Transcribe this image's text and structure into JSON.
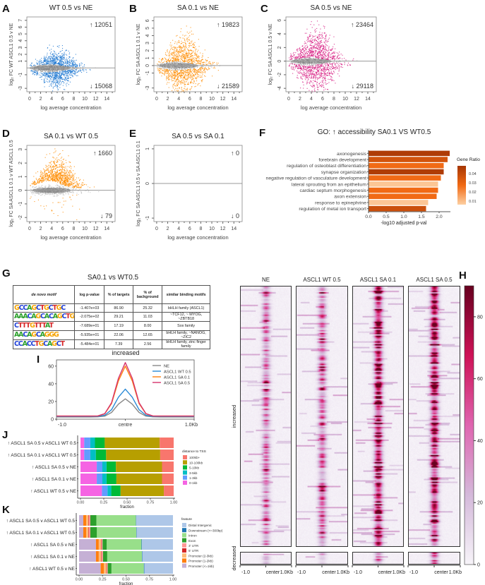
{
  "panel_letters": {
    "A": "A",
    "B": "B",
    "C": "C",
    "D": "D",
    "E": "E",
    "F": "F",
    "G": "G",
    "H": "H",
    "I": "I",
    "J": "J",
    "K": "K"
  },
  "chart_data": [
    {
      "id": "A",
      "type": "scatter",
      "title": "WT 0.5 vs NE",
      "xlabel": "log average concentration",
      "ylabel": "log₂ FC  WT ASCL1 0.5 v NE",
      "xlim": [
        -0.5,
        15.5
      ],
      "ylim": [
        -3.5,
        7.5
      ],
      "xticks": [
        0,
        2,
        4,
        6,
        8,
        10,
        12,
        14
      ],
      "yticks": [
        -3,
        -1,
        1,
        2,
        3,
        4,
        5,
        6,
        7
      ],
      "up_label": "↑ 12051",
      "down_label": "↓ 15068",
      "up": 12051,
      "down": 15068,
      "color": "#1f78d1",
      "amp": 1.0
    },
    {
      "id": "B",
      "type": "scatter",
      "title": "SA 0.1 vs NE",
      "xlabel": "log average concentration",
      "ylabel": "log₂ FC  SA ASCL1 0.1 v NE",
      "xlim": [
        -0.5,
        15.5
      ],
      "ylim": [
        -3.5,
        6.5
      ],
      "xticks": [
        0,
        2,
        4,
        6,
        8,
        10,
        12,
        14
      ],
      "yticks": [
        -3,
        -1,
        0,
        1,
        2,
        3,
        4,
        5,
        6
      ],
      "up_label": "↑ 19823",
      "down_label": "↓ 21589",
      "up": 19823,
      "down": 21589,
      "color": "#ff8c00",
      "amp": 1.5
    },
    {
      "id": "C",
      "type": "scatter",
      "title": "SA 0.5 vs NE",
      "xlabel": "log average concentration",
      "ylabel": "log₂ FC  SA ASCL1 0.5 v NE",
      "xlim": [
        -0.5,
        15.5
      ],
      "ylim": [
        -4.5,
        6.5
      ],
      "xticks": [
        0,
        2,
        4,
        6,
        8,
        10,
        12,
        14
      ],
      "yticks": [
        -4,
        -2,
        0,
        2,
        4,
        6
      ],
      "up_label": "↑ 23464",
      "down_label": "↓ 29118",
      "up": 23464,
      "down": 29118,
      "color": "#d6167f",
      "amp": 1.7
    },
    {
      "id": "D",
      "type": "scatter",
      "title": "SA 0.1 vs WT 0.5",
      "xlabel": "log average concentration",
      "ylabel": "log₂ FC  SA ASCL1 0.1 v WT ASCL1 0.5",
      "xlim": [
        -0.5,
        15.5
      ],
      "ylim": [
        -2.3,
        3.3
      ],
      "xticks": [
        0,
        2,
        4,
        6,
        8,
        10,
        12,
        14
      ],
      "yticks": [
        -2,
        -1,
        0,
        1,
        2,
        3
      ],
      "up_label": "↑ 1660",
      "down_label": "↓ 79",
      "up": 1660,
      "down": 79,
      "color": "#ff8c00",
      "amp": 0.5
    },
    {
      "id": "E",
      "type": "scatter",
      "title": "SA 0.5 vs SA 0.1",
      "xlabel": "log average concentration",
      "ylabel": "log₂ FC  SA ASCL1 0.5 v SA ASCL1 0.1",
      "xlim": [
        -0.5,
        15.5
      ],
      "ylim": [
        -1.1,
        1.1
      ],
      "xticks": [
        0,
        2,
        4,
        6,
        8,
        10,
        12,
        14
      ],
      "yticks": [
        -1,
        0,
        1
      ],
      "up_label": "↑ 0",
      "down_label": "↓ 0",
      "up": 0,
      "down": 0,
      "color": "#888888",
      "amp": 0
    },
    {
      "id": "F",
      "type": "bar",
      "orientation": "horizontal",
      "title": "GO: ↑ accessibility SA0.1 VS WT0.5",
      "xlabel": "-log10 adjusted p-val",
      "xlim": [
        0,
        2.3
      ],
      "xticks": [
        "0.0",
        "0.5",
        "1.0",
        "1.5",
        "2.0"
      ],
      "categories": [
        "axonogenesis",
        "forebrain development",
        "regulation of osteoblast differentiation",
        "synapse organization",
        "negative regulation of vasculature development",
        "lateral sprouting from an epithelium",
        "cardiac septum morphogenesis",
        "axon extension",
        "response to epinephrine",
        "regulation of metal ion transport"
      ],
      "values": [
        2.3,
        2.24,
        2.13,
        2.13,
        2.05,
        1.97,
        1.97,
        1.93,
        1.69,
        1.63
      ],
      "gene_ratio": [
        0.046,
        0.036,
        0.027,
        0.046,
        0.027,
        0.008,
        0.027,
        0.027,
        0.008,
        0.038
      ],
      "legend_title": "Gene Ratio",
      "legend_ticks": [
        "0.04",
        "0.03",
        "0.02",
        "0.01"
      ],
      "color_low": "#fdd0a2",
      "color_mid": "#f16913",
      "color_high": "#a63603"
    },
    {
      "id": "I",
      "type": "line",
      "title": "increased",
      "x": [
        -1.0,
        -0.9,
        -0.8,
        -0.7,
        -0.6,
        -0.5,
        -0.4,
        -0.3,
        -0.2,
        -0.1,
        0.0,
        0.1,
        0.2,
        0.3,
        0.4,
        0.5,
        0.6,
        0.7,
        0.8,
        0.9,
        1.0
      ],
      "xticklabels": [
        "-1.0",
        "centre",
        "1.0Kb"
      ],
      "yticks": [
        "0",
        "20",
        "40",
        "60"
      ],
      "ylim": [
        0,
        67
      ],
      "series": [
        {
          "name": "NE",
          "color": "#888888",
          "values": [
            2.5,
            2.5,
            2.5,
            2.5,
            2.5,
            2.5,
            2.6,
            3.4,
            7.6,
            17.0,
            23,
            17.0,
            7.6,
            3.4,
            2.6,
            2.5,
            2.5,
            2.5,
            2.5,
            2.5,
            2.5
          ]
        },
        {
          "name": "ASCL1 WT 0.5",
          "color": "#2b8ad6",
          "values": [
            3,
            3,
            3,
            3,
            3,
            3,
            3.1,
            4.4,
            10.7,
            24.9,
            34,
            24.9,
            10.7,
            4.4,
            3.1,
            3,
            3,
            3,
            3,
            3,
            3
          ]
        },
        {
          "name": "ASCL1 SA 0.1",
          "color": "#ff7f0e",
          "values": [
            3.5,
            3.5,
            3.5,
            3.5,
            3.5,
            3.5,
            3.7,
            6.0,
            17.6,
            43.4,
            60,
            43.4,
            17.6,
            6.0,
            3.7,
            3.5,
            3.5,
            3.5,
            3.5,
            3.5,
            3.5
          ]
        },
        {
          "name": "ASCL1 SA 0.5",
          "color": "#d6336c",
          "values": [
            3.5,
            3.5,
            3.5,
            3.5,
            3.5,
            3.5,
            3.7,
            6.2,
            18.6,
            46.3,
            64,
            46.3,
            18.6,
            6.2,
            3.7,
            3.5,
            3.5,
            3.5,
            3.5,
            3.5,
            3.5
          ]
        }
      ]
    },
    {
      "id": "J",
      "type": "bar",
      "orientation": "horizontal",
      "stacked": true,
      "xlabel": "fraction",
      "xticks": [
        "0.00",
        "0.25",
        "0.50",
        "0.75",
        "1.00"
      ],
      "legend_title": "distance to TSS",
      "categories": [
        "↑ ASCL1 SA 0.5 v ASCL1 WT 0.5",
        "↑ ASCL1 SA 0.1 v ASCL1 WT 0.5",
        "↑ ASCL1 SA 0.5 v NE",
        "↑ ASCL1 SA 0.1 v NE",
        "↑ ASCL1 WT 0.5 v  NE"
      ],
      "series": [
        {
          "name": "0-1kb",
          "color": "#f564e3",
          "values": [
            0.04,
            0.04,
            0.175,
            0.175,
            0.23
          ]
        },
        {
          "name": "1-3kb",
          "color": "#619cff",
          "values": [
            0.065,
            0.065,
            0.06,
            0.06,
            0.06
          ]
        },
        {
          "name": "3-5kb",
          "color": "#00bfc4",
          "values": [
            0.05,
            0.06,
            0.045,
            0.045,
            0.04
          ]
        },
        {
          "name": "5-10kb",
          "color": "#00ba38",
          "values": [
            0.105,
            0.11,
            0.1,
            0.105,
            0.1
          ]
        },
        {
          "name": "10-100kb",
          "color": "#b79f00",
          "values": [
            0.59,
            0.58,
            0.495,
            0.49,
            0.465
          ]
        },
        {
          "name": "100kb+",
          "color": "#f8766d",
          "values": [
            0.15,
            0.145,
            0.125,
            0.125,
            0.105
          ]
        }
      ],
      "legend_order": [
        "100kb+",
        "10-100kb",
        "5-10kb",
        "3-5kb",
        "1-3kb",
        "0-1kb"
      ]
    },
    {
      "id": "K",
      "type": "bar",
      "orientation": "horizontal",
      "stacked": true,
      "xlabel": "fraction",
      "xticks": [
        "0.00",
        "0.25",
        "0.50",
        "0.75",
        "1.00"
      ],
      "legend_title": "feature",
      "categories": [
        "↑ ASCL1 SA 0.5 v ASCL1 WT 0.5",
        "↑ ASCL1 SA 0.1 v ASCL1 WT 0.5",
        "↑ ASCL1 SA 0.5 v NE",
        "↑ ASCL1 SA 0.1 v NE",
        "↑ ASCL1 WT 0.5 v NE"
      ],
      "series": [
        {
          "name": "Promoter (<=1kb)",
          "color": "#c5b0d5",
          "values": [
            0.045,
            0.045,
            0.18,
            0.18,
            0.23
          ]
        },
        {
          "name": "Promoter (1-2kb)",
          "color": "#ff7f0e",
          "values": [
            0.03,
            0.03,
            0.03,
            0.03,
            0.035
          ]
        },
        {
          "name": "Promoter (2-3kb)",
          "color": "#ffbb78",
          "values": [
            0.025,
            0.025,
            0.025,
            0.025,
            0.025
          ]
        },
        {
          "name": "5' UTR",
          "color": "#d62728",
          "values": [
            0.005,
            0.005,
            0.005,
            0.005,
            0.005
          ]
        },
        {
          "name": "3' UTR",
          "color": "#ff9896",
          "values": [
            0.015,
            0.015,
            0.01,
            0.015,
            0.01
          ]
        },
        {
          "name": "Exon",
          "color": "#2ca02c",
          "values": [
            0.065,
            0.07,
            0.045,
            0.045,
            0.04
          ]
        },
        {
          "name": "Intron",
          "color": "#98df8a",
          "values": [
            0.42,
            0.42,
            0.37,
            0.37,
            0.345
          ]
        },
        {
          "name": "Downstream (<=300bp)",
          "color": "#1f77b4",
          "values": [
            0.003,
            0.003,
            0.005,
            0.005,
            0.005
          ]
        },
        {
          "name": "Distal Intergenic",
          "color": "#aec7e8",
          "values": [
            0.392,
            0.387,
            0.33,
            0.325,
            0.305
          ]
        }
      ],
      "legend_order": [
        "Distal Intergenic",
        "Downstream (<=300bp)",
        "Intron",
        "Exon",
        "3' UTR",
        "5' UTR",
        "Promoter (2-3kb)",
        "Promoter (1-2kb)",
        "Promoter (<=1kb)"
      ]
    },
    {
      "id": "H",
      "type": "heatmap",
      "columns": [
        "NE",
        "ASCL1 WT 0.5",
        "ASCL1 SA 0.1",
        "ASCL1 SA 0.5"
      ],
      "column_intensity": [
        0.45,
        0.55,
        1.0,
        1.0
      ],
      "row_groups": [
        "increased",
        "decreased"
      ],
      "xticklabels": [
        "-1.0",
        "center",
        "1.0Kb"
      ],
      "colorbar_ticks": [
        "0",
        "20",
        "40",
        "60",
        "80"
      ],
      "colorbar_range": [
        0,
        90
      ],
      "colormap": [
        "#f7f4f9",
        "#d4b9da",
        "#df65b0",
        "#ce1256",
        "#67001f"
      ]
    }
  ],
  "table_G": {
    "title": "SA0.1 vs WT0.5",
    "headers": [
      "de novo motif",
      "log p-value",
      "% of targets",
      "% of background",
      "similar binding motifs"
    ],
    "rows": [
      {
        "motif": "GCCAGCTGCTGC",
        "logp": "-1.407e+03",
        "targets": "86.90",
        "background": "25.32",
        "similar": "bHLH family (ASCL1)"
      },
      {
        "motif": "AAACAGCACAGCTG",
        "logp": "-2.075e+02",
        "targets": "29.21",
        "background": "11.03",
        "similar": "~TCF12, ~ MYOG, ~ZBTB18"
      },
      {
        "motif": "CTTTGTTTAT",
        "logp": "-7.689e+01",
        "targets": "17.19",
        "background": "8.00",
        "similar": "Sox family"
      },
      {
        "motif": "AACAGCAGGG",
        "logp": "-5.935e+01",
        "targets": "22.06",
        "background": "12.65",
        "similar": "bHLH family, ~NANOG, ~ZIC2"
      },
      {
        "motif": "CCACCTGCAGCT",
        "logp": "-5.484e+01",
        "targets": "7.39",
        "background": "2.56",
        "similar": "bHLH family, zinc finger family"
      }
    ],
    "logo_colors": {
      "A": "#2ca02c",
      "C": "#1f3fd6",
      "G": "#f5a300",
      "T": "#d62728"
    }
  }
}
